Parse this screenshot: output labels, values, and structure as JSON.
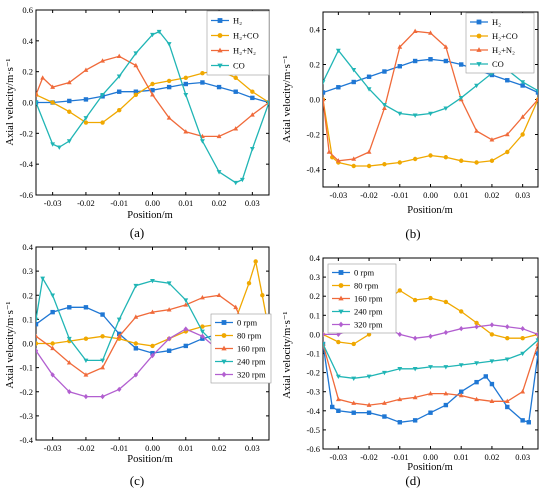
{
  "chart_data": [
    {
      "type": "line",
      "panel_label": "(a)",
      "xlabel": "Position/m",
      "ylabel": "Axial velocity/m·s⁻¹",
      "xlim": [
        -0.035,
        0.035
      ],
      "ylim": [
        -0.6,
        0.6
      ],
      "xticks": [
        -0.03,
        -0.02,
        -0.01,
        0.0,
        0.01,
        0.02,
        0.03
      ],
      "xtick_labels": [
        "-0.03",
        "-0.02",
        "-0.01",
        "0.00",
        "0.01",
        "0.02",
        "0.03"
      ],
      "yticks": [
        -0.6,
        -0.4,
        -0.2,
        0.0,
        0.2,
        0.4,
        0.6
      ],
      "ytick_labels": [
        "-0.6",
        "-0.4",
        "-0.2",
        "0.0",
        "0.2",
        "0.4",
        "0.6"
      ],
      "legend_position": "top-right",
      "series": [
        {
          "name": "H₂",
          "color": "#1f77d4",
          "marker": "square",
          "x": [
            -0.035,
            -0.03,
            -0.025,
            -0.02,
            -0.015,
            -0.01,
            -0.005,
            0.0,
            0.005,
            0.01,
            0.015,
            0.02,
            0.025,
            0.03,
            0.035
          ],
          "y": [
            0.0,
            0.0,
            0.01,
            0.02,
            0.04,
            0.07,
            0.07,
            0.08,
            0.1,
            0.12,
            0.13,
            0.1,
            0.07,
            0.03,
            0.0
          ]
        },
        {
          "name": "H₂+CO",
          "color": "#f0a800",
          "marker": "circle",
          "x": [
            -0.035,
            -0.03,
            -0.025,
            -0.02,
            -0.015,
            -0.01,
            -0.005,
            0.0,
            0.005,
            0.01,
            0.015,
            0.02,
            0.025,
            0.03,
            0.035
          ],
          "y": [
            0.05,
            0.0,
            -0.06,
            -0.13,
            -0.13,
            -0.05,
            0.05,
            0.12,
            0.14,
            0.16,
            0.19,
            0.21,
            0.16,
            0.07,
            0.0
          ]
        },
        {
          "name": "H₂+N₂",
          "color": "#f06a3a",
          "marker": "triangle-up",
          "x": [
            -0.035,
            -0.033,
            -0.03,
            -0.025,
            -0.02,
            -0.015,
            -0.01,
            -0.005,
            0.0,
            0.005,
            0.01,
            0.015,
            0.02,
            0.025,
            0.03,
            0.035
          ],
          "y": [
            0.05,
            0.16,
            0.1,
            0.13,
            0.21,
            0.27,
            0.3,
            0.24,
            0.05,
            -0.1,
            -0.19,
            -0.22,
            -0.22,
            -0.17,
            -0.08,
            0.0
          ]
        },
        {
          "name": "CO",
          "color": "#20b5b5",
          "marker": "triangle-down",
          "x": [
            -0.035,
            -0.03,
            -0.028,
            -0.025,
            -0.02,
            -0.015,
            -0.01,
            -0.005,
            0.0,
            0.002,
            0.005,
            0.01,
            0.015,
            0.02,
            0.025,
            0.027,
            0.03,
            0.035
          ],
          "y": [
            0.0,
            -0.27,
            -0.29,
            -0.25,
            -0.1,
            0.05,
            0.17,
            0.32,
            0.44,
            0.46,
            0.38,
            0.05,
            -0.25,
            -0.45,
            -0.52,
            -0.5,
            -0.3,
            0.0
          ]
        }
      ]
    },
    {
      "type": "line",
      "panel_label": "(b)",
      "xlabel": "Position/m",
      "ylabel": "Axial velocity/m·s⁻¹",
      "xlim": [
        -0.035,
        0.035
      ],
      "ylim": [
        -0.5,
        0.5
      ],
      "xticks": [
        -0.03,
        -0.02,
        -0.01,
        0.0,
        0.01,
        0.02,
        0.03
      ],
      "xtick_labels": [
        "-0.03",
        "-0.02",
        "-0.01",
        "0.00",
        "0.01",
        "0.02",
        "0.03"
      ],
      "yticks": [
        -0.4,
        -0.2,
        0.0,
        0.2,
        0.4
      ],
      "ytick_labels": [
        "-0.4",
        "-0.2",
        "0.0",
        "0.2",
        "0.4"
      ],
      "legend_position": "top-right",
      "series": [
        {
          "name": "H₂",
          "color": "#1f77d4",
          "marker": "square",
          "x": [
            -0.035,
            -0.03,
            -0.025,
            -0.02,
            -0.015,
            -0.01,
            -0.005,
            0.0,
            0.005,
            0.01,
            0.015,
            0.02,
            0.025,
            0.03,
            0.035
          ],
          "y": [
            0.04,
            0.07,
            0.1,
            0.13,
            0.16,
            0.19,
            0.22,
            0.23,
            0.22,
            0.2,
            0.17,
            0.14,
            0.11,
            0.08,
            0.04
          ]
        },
        {
          "name": "H₂+CO",
          "color": "#f0a800",
          "marker": "circle",
          "x": [
            -0.035,
            -0.032,
            -0.03,
            -0.025,
            -0.02,
            -0.015,
            -0.01,
            -0.005,
            0.0,
            0.005,
            0.01,
            0.015,
            0.02,
            0.025,
            0.03,
            0.035
          ],
          "y": [
            0.0,
            -0.33,
            -0.36,
            -0.38,
            -0.38,
            -0.37,
            -0.36,
            -0.34,
            -0.32,
            -0.33,
            -0.35,
            -0.36,
            -0.35,
            -0.3,
            -0.2,
            0.0
          ]
        },
        {
          "name": "H₂+N₂",
          "color": "#f06a3a",
          "marker": "triangle-up",
          "x": [
            -0.035,
            -0.033,
            -0.03,
            -0.025,
            -0.02,
            -0.015,
            -0.01,
            -0.005,
            0.0,
            0.005,
            0.01,
            0.015,
            0.02,
            0.025,
            0.03,
            0.035
          ],
          "y": [
            0.0,
            -0.3,
            -0.35,
            -0.34,
            -0.3,
            -0.05,
            0.3,
            0.39,
            0.38,
            0.3,
            0.0,
            -0.18,
            -0.23,
            -0.2,
            -0.1,
            0.0
          ]
        },
        {
          "name": "CO",
          "color": "#20b5b5",
          "marker": "triangle-down",
          "x": [
            -0.035,
            -0.03,
            -0.025,
            -0.02,
            -0.015,
            -0.01,
            -0.005,
            0.0,
            0.005,
            0.01,
            0.015,
            0.02,
            0.025,
            0.03,
            0.035
          ],
          "y": [
            0.1,
            0.28,
            0.17,
            0.06,
            -0.03,
            -0.08,
            -0.09,
            -0.08,
            -0.05,
            0.01,
            0.08,
            0.15,
            0.17,
            0.1,
            0.05
          ]
        }
      ]
    },
    {
      "type": "line",
      "panel_label": "(c)",
      "xlabel": "Position/m",
      "ylabel": "Axial velocity/m·s⁻¹",
      "xlim": [
        -0.035,
        0.035
      ],
      "ylim": [
        -0.4,
        0.4
      ],
      "xticks": [
        -0.03,
        -0.02,
        -0.01,
        0.0,
        0.01,
        0.02,
        0.03
      ],
      "xtick_labels": [
        "-0.03",
        "-0.02",
        "-0.01",
        "0.00",
        "0.01",
        "0.02",
        "0.03"
      ],
      "yticks": [
        -0.4,
        -0.3,
        -0.2,
        -0.1,
        0.0,
        0.1,
        0.2,
        0.3,
        0.4
      ],
      "ytick_labels": [
        "-0.4",
        "-0.3",
        "-0.2",
        "-0.1",
        "0.0",
        "0.1",
        "0.2",
        "0.3",
        "0.4"
      ],
      "legend_position": "bottom-right",
      "series": [
        {
          "name": "0 rpm",
          "color": "#1f77d4",
          "marker": "square",
          "x": [
            -0.035,
            -0.03,
            -0.025,
            -0.02,
            -0.015,
            -0.01,
            -0.005,
            0.0,
            0.005,
            0.01,
            0.015,
            0.02,
            0.025,
            0.03,
            0.035
          ],
          "y": [
            0.08,
            0.13,
            0.15,
            0.15,
            0.12,
            0.04,
            -0.02,
            -0.04,
            -0.03,
            -0.01,
            0.02,
            0.04,
            0.05,
            0.04,
            0.02
          ]
        },
        {
          "name": "80 rpm",
          "color": "#f0a800",
          "marker": "circle",
          "x": [
            -0.035,
            -0.03,
            -0.025,
            -0.02,
            -0.015,
            -0.01,
            -0.005,
            0.0,
            0.005,
            0.01,
            0.015,
            0.02,
            0.025,
            0.029,
            0.031,
            0.033,
            0.035
          ],
          "y": [
            0.0,
            0.0,
            0.01,
            0.02,
            0.03,
            0.02,
            0.0,
            -0.01,
            0.02,
            0.05,
            0.07,
            0.08,
            0.1,
            0.25,
            0.34,
            0.2,
            0.05
          ]
        },
        {
          "name": "160 rpm",
          "color": "#f06a3a",
          "marker": "triangle-up",
          "x": [
            -0.035,
            -0.03,
            -0.025,
            -0.02,
            -0.015,
            -0.01,
            -0.005,
            0.0,
            0.005,
            0.01,
            0.015,
            0.02,
            0.025,
            0.03,
            0.035
          ],
          "y": [
            0.03,
            -0.02,
            -0.08,
            -0.13,
            -0.1,
            0.03,
            0.11,
            0.13,
            0.14,
            0.16,
            0.19,
            0.2,
            0.15,
            0.0,
            -0.02
          ]
        },
        {
          "name": "240 rpm",
          "color": "#20b5b5",
          "marker": "triangle-down",
          "x": [
            -0.035,
            -0.033,
            -0.03,
            -0.025,
            -0.02,
            -0.015,
            -0.01,
            -0.005,
            0.0,
            0.005,
            0.01,
            0.015,
            0.02,
            0.025,
            0.03,
            0.035
          ],
          "y": [
            0.1,
            0.27,
            0.2,
            0.02,
            -0.07,
            -0.07,
            0.1,
            0.24,
            0.26,
            0.25,
            0.18,
            0.05,
            -0.02,
            -0.03,
            -0.02,
            -0.01
          ]
        },
        {
          "name": "320 rpm",
          "color": "#b25fd0",
          "marker": "diamond",
          "x": [
            -0.035,
            -0.03,
            -0.025,
            -0.02,
            -0.015,
            -0.01,
            -0.005,
            0.0,
            0.005,
            0.01,
            0.015,
            0.02,
            0.025,
            0.03,
            0.035
          ],
          "y": [
            -0.03,
            -0.13,
            -0.2,
            -0.22,
            -0.22,
            -0.19,
            -0.13,
            -0.05,
            0.02,
            0.06,
            0.03,
            -0.03,
            -0.06,
            -0.03,
            0.0
          ]
        }
      ]
    },
    {
      "type": "line",
      "panel_label": "(d)",
      "xlabel": "Position/m",
      "ylabel": "Axial velocity/m·s⁻¹",
      "xlim": [
        -0.035,
        0.035
      ],
      "ylim": [
        -0.6,
        0.4
      ],
      "xticks": [
        -0.03,
        -0.02,
        -0.01,
        0.0,
        0.01,
        0.02,
        0.03
      ],
      "xtick_labels": [
        "-0.03",
        "-0.02",
        "-0.01",
        "0.00",
        "0.01",
        "0.02",
        "0.03"
      ],
      "yticks": [
        -0.6,
        -0.5,
        -0.4,
        -0.3,
        -0.2,
        -0.1,
        0.0,
        0.1,
        0.2,
        0.3,
        0.4
      ],
      "ytick_labels": [
        "-0.6",
        "-0.5",
        "-0.4",
        "-0.3",
        "-0.2",
        "-0.1",
        "0.0",
        "0.1",
        "0.2",
        "0.3",
        "0.4"
      ],
      "legend_position": "top-left",
      "series": [
        {
          "name": "0 rpm",
          "color": "#1f77d4",
          "marker": "square",
          "x": [
            -0.035,
            -0.032,
            -0.03,
            -0.025,
            -0.02,
            -0.015,
            -0.01,
            -0.005,
            0.0,
            0.005,
            0.01,
            0.015,
            0.018,
            0.02,
            0.025,
            0.03,
            0.032,
            0.035
          ],
          "y": [
            -0.05,
            -0.38,
            -0.4,
            -0.41,
            -0.41,
            -0.43,
            -0.46,
            -0.45,
            -0.41,
            -0.37,
            -0.3,
            -0.25,
            -0.22,
            -0.26,
            -0.38,
            -0.45,
            -0.46,
            -0.1
          ]
        },
        {
          "name": "80 rpm",
          "color": "#f0a800",
          "marker": "circle",
          "x": [
            -0.035,
            -0.03,
            -0.025,
            -0.02,
            -0.015,
            -0.01,
            -0.005,
            0.0,
            0.005,
            0.01,
            0.015,
            0.02,
            0.025,
            0.03,
            0.035
          ],
          "y": [
            0.0,
            -0.04,
            -0.05,
            0.0,
            0.17,
            0.23,
            0.18,
            0.19,
            0.17,
            0.12,
            0.06,
            0.0,
            -0.02,
            -0.02,
            0.0
          ]
        },
        {
          "name": "160 rpm",
          "color": "#f06a3a",
          "marker": "triangle-up",
          "x": [
            -0.035,
            -0.03,
            -0.025,
            -0.02,
            -0.015,
            -0.01,
            -0.005,
            0.0,
            0.005,
            0.01,
            0.015,
            0.02,
            0.025,
            0.03,
            0.035
          ],
          "y": [
            -0.05,
            -0.34,
            -0.36,
            -0.37,
            -0.36,
            -0.34,
            -0.33,
            -0.31,
            -0.31,
            -0.32,
            -0.34,
            -0.35,
            -0.35,
            -0.3,
            -0.05
          ]
        },
        {
          "name": "240 rpm",
          "color": "#20b5b5",
          "marker": "triangle-down",
          "x": [
            -0.035,
            -0.03,
            -0.025,
            -0.02,
            -0.015,
            -0.01,
            -0.005,
            0.0,
            0.005,
            0.01,
            0.015,
            0.02,
            0.025,
            0.03,
            0.035
          ],
          "y": [
            -0.05,
            -0.22,
            -0.23,
            -0.22,
            -0.2,
            -0.18,
            -0.18,
            -0.17,
            -0.17,
            -0.16,
            -0.15,
            -0.14,
            -0.13,
            -0.1,
            -0.03
          ]
        },
        {
          "name": "320 rpm",
          "color": "#b25fd0",
          "marker": "diamond",
          "x": [
            -0.035,
            -0.03,
            -0.025,
            -0.02,
            -0.015,
            -0.01,
            -0.005,
            0.0,
            0.005,
            0.01,
            0.015,
            0.02,
            0.025,
            0.03,
            0.035
          ],
          "y": [
            0.0,
            0.0,
            0.03,
            0.05,
            0.04,
            0.0,
            -0.02,
            -0.01,
            0.01,
            0.03,
            0.04,
            0.05,
            0.04,
            0.03,
            0.0
          ]
        }
      ]
    }
  ]
}
